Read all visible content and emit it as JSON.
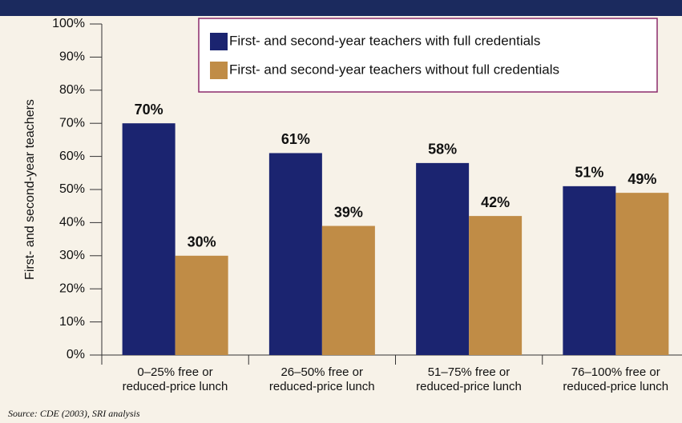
{
  "chart_data": {
    "type": "bar",
    "ylabel": "First- and second-year teachers",
    "source": "Source: CDE (2003), SRI analysis",
    "categories": [
      "0–25% free or\nreduced-price lunch",
      "26–50% free or\nreduced-price lunch",
      "51–75% free or\nreduced-price lunch",
      "76–100% free or\nreduced-price lunch"
    ],
    "series": [
      {
        "name": "First- and second-year teachers with full credentials",
        "color": "#1b2470",
        "values": [
          70,
          61,
          58,
          51
        ],
        "value_labels": [
          "70%",
          "61%",
          "58%",
          "51%"
        ]
      },
      {
        "name": "First- and second-year teachers without full credentials",
        "color": "#c08c46",
        "values": [
          30,
          39,
          42,
          49
        ],
        "value_labels": [
          "30%",
          "39%",
          "42%",
          "49%"
        ]
      }
    ],
    "ylim": [
      0,
      100
    ],
    "yticks": [
      {
        "value": 0,
        "label": "0%"
      },
      {
        "value": 10,
        "label": "10%"
      },
      {
        "value": 20,
        "label": "20%"
      },
      {
        "value": 30,
        "label": "30%"
      },
      {
        "value": 40,
        "label": "40%"
      },
      {
        "value": 50,
        "label": "50%"
      },
      {
        "value": 60,
        "label": "60%"
      },
      {
        "value": 70,
        "label": "70%"
      },
      {
        "value": 80,
        "label": "80%"
      },
      {
        "value": 90,
        "label": "90%"
      },
      {
        "value": 100,
        "label": "100%"
      }
    ],
    "legend": "upper right"
  }
}
